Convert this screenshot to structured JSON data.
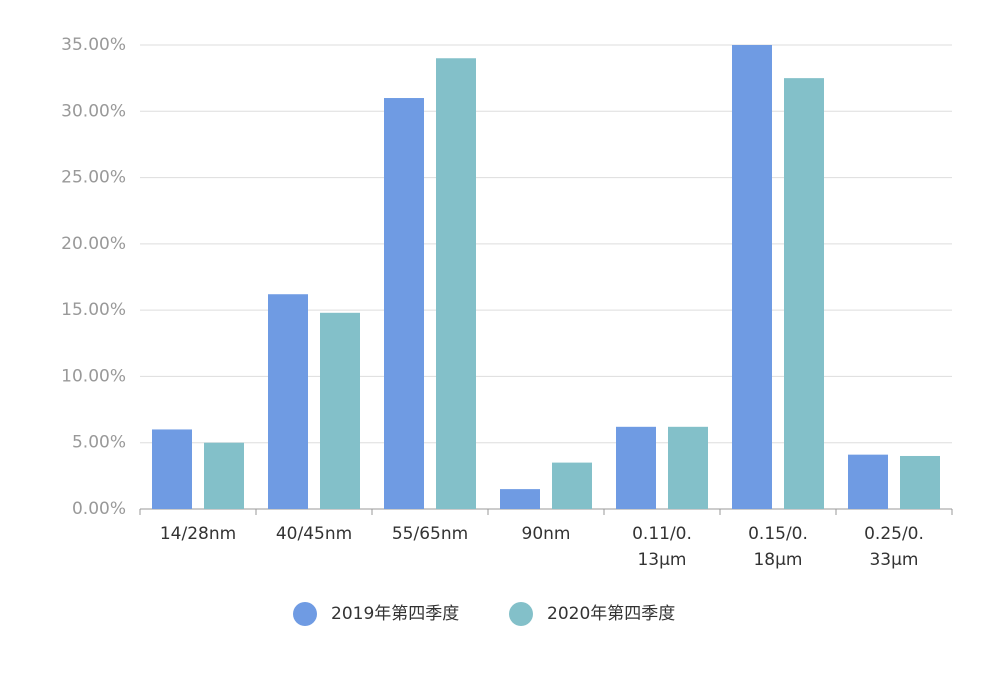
{
  "chart_data": {
    "type": "bar",
    "categories": [
      "14/28nm",
      "40/45nm",
      "55/65nm",
      "90nm",
      "0.11/0.13μm",
      "0.15/0.18μm",
      "0.25/0.33μm"
    ],
    "series": [
      {
        "name": "2019年第四季度",
        "color": "#6f9be3",
        "values": [
          6.0,
          16.2,
          31.0,
          1.5,
          6.2,
          35.0,
          4.1
        ]
      },
      {
        "name": "2020年第四季度",
        "color": "#83c0c9",
        "values": [
          5.0,
          14.8,
          34.0,
          3.5,
          6.2,
          32.5,
          4.0
        ]
      }
    ],
    "ylim": [
      0,
      35
    ],
    "yticks": [
      {
        "value": 0,
        "label": "0.00%"
      },
      {
        "value": 5,
        "label": "5.00%"
      },
      {
        "value": 10,
        "label": "10.00%"
      },
      {
        "value": 15,
        "label": "15.00%"
      },
      {
        "value": 20,
        "label": "20.00%"
      },
      {
        "value": 25,
        "label": "25.00%"
      },
      {
        "value": 30,
        "label": "30.00%"
      },
      {
        "value": 35,
        "label": "35.00%"
      }
    ],
    "grid": true,
    "legend": "bottom"
  }
}
